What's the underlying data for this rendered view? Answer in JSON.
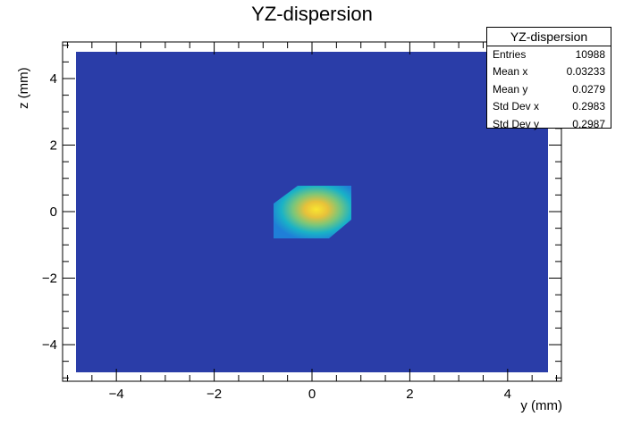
{
  "chart_data": {
    "type": "heatmap",
    "title": "YZ-dispersion",
    "xlabel": "y (mm)",
    "ylabel": "z (mm)",
    "xlim": [
      -5.1,
      5.1
    ],
    "ylim": [
      -5.1,
      5.1
    ],
    "xticks": [
      -4,
      -2,
      0,
      2,
      4
    ],
    "yticks": [
      -4,
      -2,
      0,
      2,
      4
    ],
    "tick_labels_x": [
      "−4",
      "−2",
      "0",
      "2",
      "4"
    ],
    "tick_labels_y": [
      "−4",
      "−2",
      "0",
      "2",
      "4"
    ],
    "background_color": "#2a3da8",
    "colors": [
      "#2a3da8",
      "#1f7fd8",
      "#19b2c7",
      "#7ac67a",
      "#e7c13a",
      "#f9e630"
    ],
    "cells_x": [
      -0.8,
      -0.4,
      0.0,
      0.4,
      0.8
    ],
    "cells_y": [
      -0.8,
      -0.4,
      0.0,
      0.4,
      0.8
    ],
    "levels": [
      [
        1,
        1,
        1,
        0
      ],
      [
        1,
        3,
        3,
        1
      ],
      [
        1,
        3,
        5,
        2
      ],
      [
        0,
        1,
        2,
        1
      ]
    ],
    "stats": {
      "title": "YZ-dispersion",
      "rows": [
        {
          "label": "Entries",
          "value": "10988"
        },
        {
          "label": "Mean x",
          "value": "0.03233"
        },
        {
          "label": "Mean y",
          "value": "0.0279"
        },
        {
          "label": "Std Dev x",
          "value": "0.2983"
        },
        {
          "label": "Std Dev y",
          "value": "0.2987"
        }
      ]
    }
  }
}
